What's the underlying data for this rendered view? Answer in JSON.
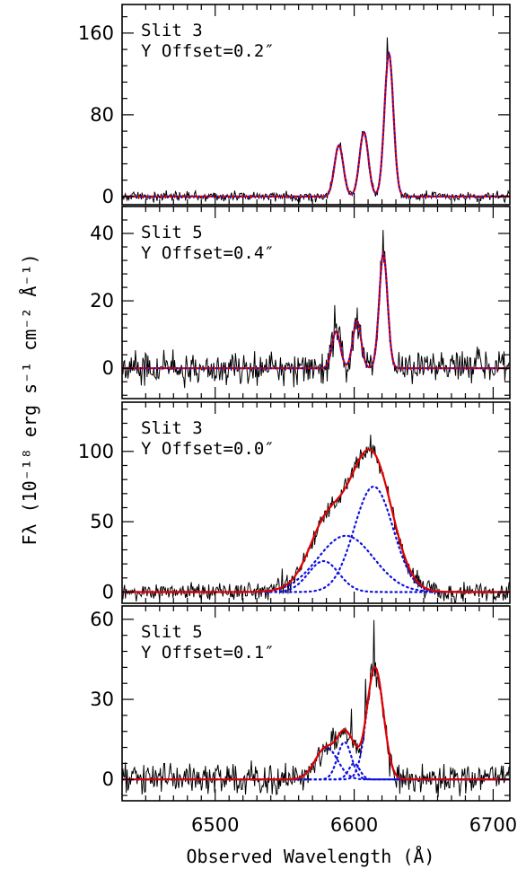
{
  "figure": {
    "xlabel": "Observed Wavelength (Å)",
    "ylabel": "Fλ (10⁻¹⁸ erg s⁻¹ cm⁻² Å⁻¹)"
  },
  "colors": {
    "data": "#000000",
    "fit": "#e00000",
    "components": "#1010e0"
  },
  "chart_data": [
    {
      "type": "line",
      "slit_label": "Slit 3",
      "offset_label": "Y Offset=0.2″",
      "xlim": [
        6433,
        6712
      ],
      "ylim": [
        -8,
        188
      ],
      "yticks": [
        0,
        80,
        160
      ],
      "xticks": [
        6500,
        6600,
        6700
      ],
      "noise": 3.5,
      "spikes": [
        [
          6624,
          23
        ],
        [
          6606,
          8
        ],
        [
          6590,
          6
        ]
      ],
      "components": [
        {
          "center": 6589,
          "amplitude": 50,
          "sigma": 3.2
        },
        {
          "center": 6607,
          "amplitude": 63,
          "sigma": 3.2
        },
        {
          "center": 6625,
          "amplitude": 140,
          "sigma": 3.2
        }
      ],
      "fit_style": "single"
    },
    {
      "type": "line",
      "slit_label": "Slit 5",
      "offset_label": "Y Offset=0.4″",
      "xlim": [
        6433,
        6712
      ],
      "ylim": [
        -9,
        48
      ],
      "yticks": [
        0,
        20,
        40
      ],
      "xticks": [
        6500,
        6600,
        6700
      ],
      "noise": 3.5,
      "spikes": [
        [
          6621,
          6
        ],
        [
          6586,
          7
        ],
        [
          6602,
          5
        ]
      ],
      "components": [
        {
          "center": 6587,
          "amplitude": 11,
          "sigma": 3.0
        },
        {
          "center": 6602,
          "amplitude": 14,
          "sigma": 3.0
        },
        {
          "center": 6621,
          "amplitude": 34,
          "sigma": 3.0
        }
      ],
      "fit_style": "single"
    },
    {
      "type": "line",
      "slit_label": "Slit 3",
      "offset_label": "Y Offset=0.0″",
      "xlim": [
        6433,
        6712
      ],
      "ylim": [
        -8,
        135
      ],
      "yticks": [
        0,
        50,
        100
      ],
      "xticks": [
        6500,
        6600,
        6700
      ],
      "noise": 4.5,
      "spikes": [
        [
          6612,
          12
        ],
        [
          6548,
          14
        ],
        [
          6503,
          8
        ]
      ],
      "components": [
        {
          "center": 6578,
          "amplitude": 22,
          "sigma": 11
        },
        {
          "center": 6594,
          "amplitude": 40,
          "sigma": 20
        },
        {
          "center": 6614,
          "amplitude": 75,
          "sigma": 14
        }
      ],
      "fit_style": "multi"
    },
    {
      "type": "line",
      "slit_label": "Slit 5",
      "offset_label": "Y Offset=0.1″",
      "xlim": [
        6433,
        6712
      ],
      "ylim": [
        -8,
        65
      ],
      "yticks": [
        0,
        30,
        60
      ],
      "xticks": [
        6500,
        6600,
        6700
      ],
      "noise": 4.0,
      "spikes": [
        [
          6614,
          18
        ],
        [
          6608,
          12
        ],
        [
          6598,
          10
        ]
      ],
      "components": [
        {
          "center": 6580,
          "amplitude": 12,
          "sigma": 8
        },
        {
          "center": 6593,
          "amplitude": 14,
          "sigma": 5
        },
        {
          "center": 6600,
          "amplitude": 6,
          "sigma": 4
        },
        {
          "center": 6615,
          "amplitude": 42,
          "sigma": 6
        }
      ],
      "fit_style": "multi"
    }
  ]
}
